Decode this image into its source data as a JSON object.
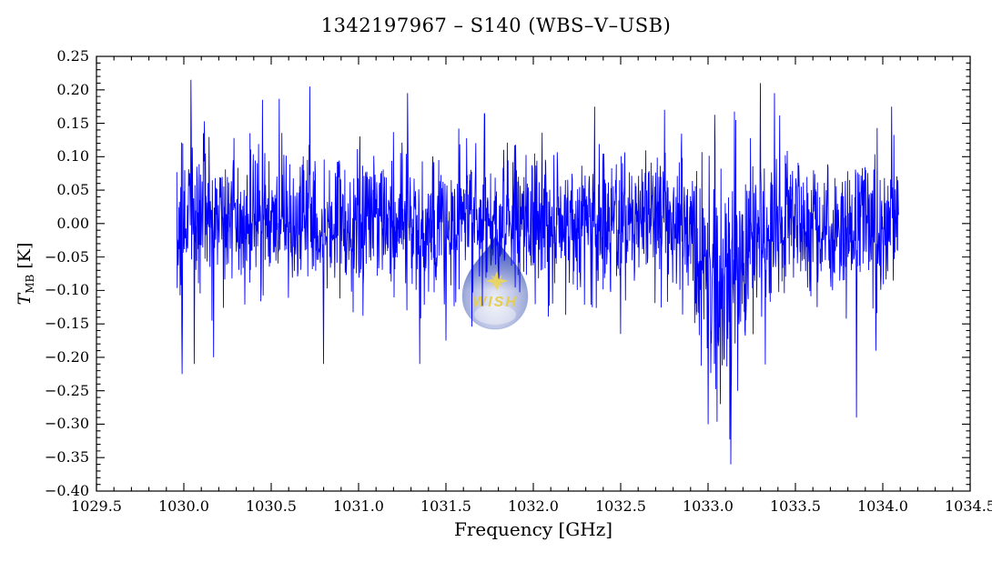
{
  "figure": {
    "title": "1342197967 – S140 (WBS–V–USB)",
    "x_axis_label": "Frequency [GHz]",
    "y_axis_label": {
      "symbol": "T",
      "subscript": "MB",
      "unit": " [K]"
    }
  },
  "watermark": {
    "text": "WISH",
    "text_color": "#e3cc48",
    "drop_top_color": "#1b2fa6",
    "drop_mid_color": "#93a0d6",
    "drop_light_color": "#e8ebf7"
  },
  "chart_data": {
    "type": "line",
    "title": "1342197967 – S140 (WBS–V–USB)",
    "xlabel": "Frequency [GHz]",
    "ylabel": "T_MB [K]",
    "xlim": [
      1029.5,
      1034.5
    ],
    "ylim": [
      -0.4,
      0.25
    ],
    "x_major_tick_step": 0.5,
    "x_minor_tick_step": 0.1,
    "y_major_tick_step": 0.05,
    "y_minor_tick_step": 0.01,
    "grid": false,
    "legend": null,
    "background": "#ffffff",
    "series": [
      {
        "name": "WBS-V-USB spectrum",
        "color": "#0000ff",
        "x_start": 1029.96,
        "x_end": 1034.09,
        "n_points": 2200,
        "baseline": 0.0,
        "noise_rms": 0.052,
        "seed": 1342197967,
        "broad_dip": {
          "center": 1033.08,
          "width": 0.25,
          "depth": -0.09,
          "sigma_boost": 0.9
        },
        "edge_noise": {
          "below": 1030.15,
          "factor": 1.2
        },
        "spikes": [
          {
            "x": 1029.99,
            "y": -0.225
          },
          {
            "x": 1030.04,
            "y": 0.215
          },
          {
            "x": 1030.06,
            "y": -0.21
          },
          {
            "x": 1030.17,
            "y": -0.2
          },
          {
            "x": 1030.45,
            "y": 0.185
          },
          {
            "x": 1030.72,
            "y": 0.205
          },
          {
            "x": 1030.8,
            "y": -0.21
          },
          {
            "x": 1031.28,
            "y": 0.195
          },
          {
            "x": 1031.35,
            "y": -0.21
          },
          {
            "x": 1031.5,
            "y": -0.175
          },
          {
            "x": 1031.72,
            "y": 0.165
          },
          {
            "x": 1032.35,
            "y": 0.175
          },
          {
            "x": 1032.5,
            "y": -0.165
          },
          {
            "x": 1032.75,
            "y": 0.17
          },
          {
            "x": 1033.0,
            "y": -0.3
          },
          {
            "x": 1033.07,
            "y": -0.27
          },
          {
            "x": 1033.13,
            "y": -0.36
          },
          {
            "x": 1033.17,
            "y": -0.25
          },
          {
            "x": 1033.3,
            "y": 0.21
          },
          {
            "x": 1033.38,
            "y": 0.195
          },
          {
            "x": 1033.85,
            "y": -0.29
          },
          {
            "x": 1033.96,
            "y": -0.19
          },
          {
            "x": 1034.05,
            "y": 0.175
          }
        ]
      }
    ]
  }
}
